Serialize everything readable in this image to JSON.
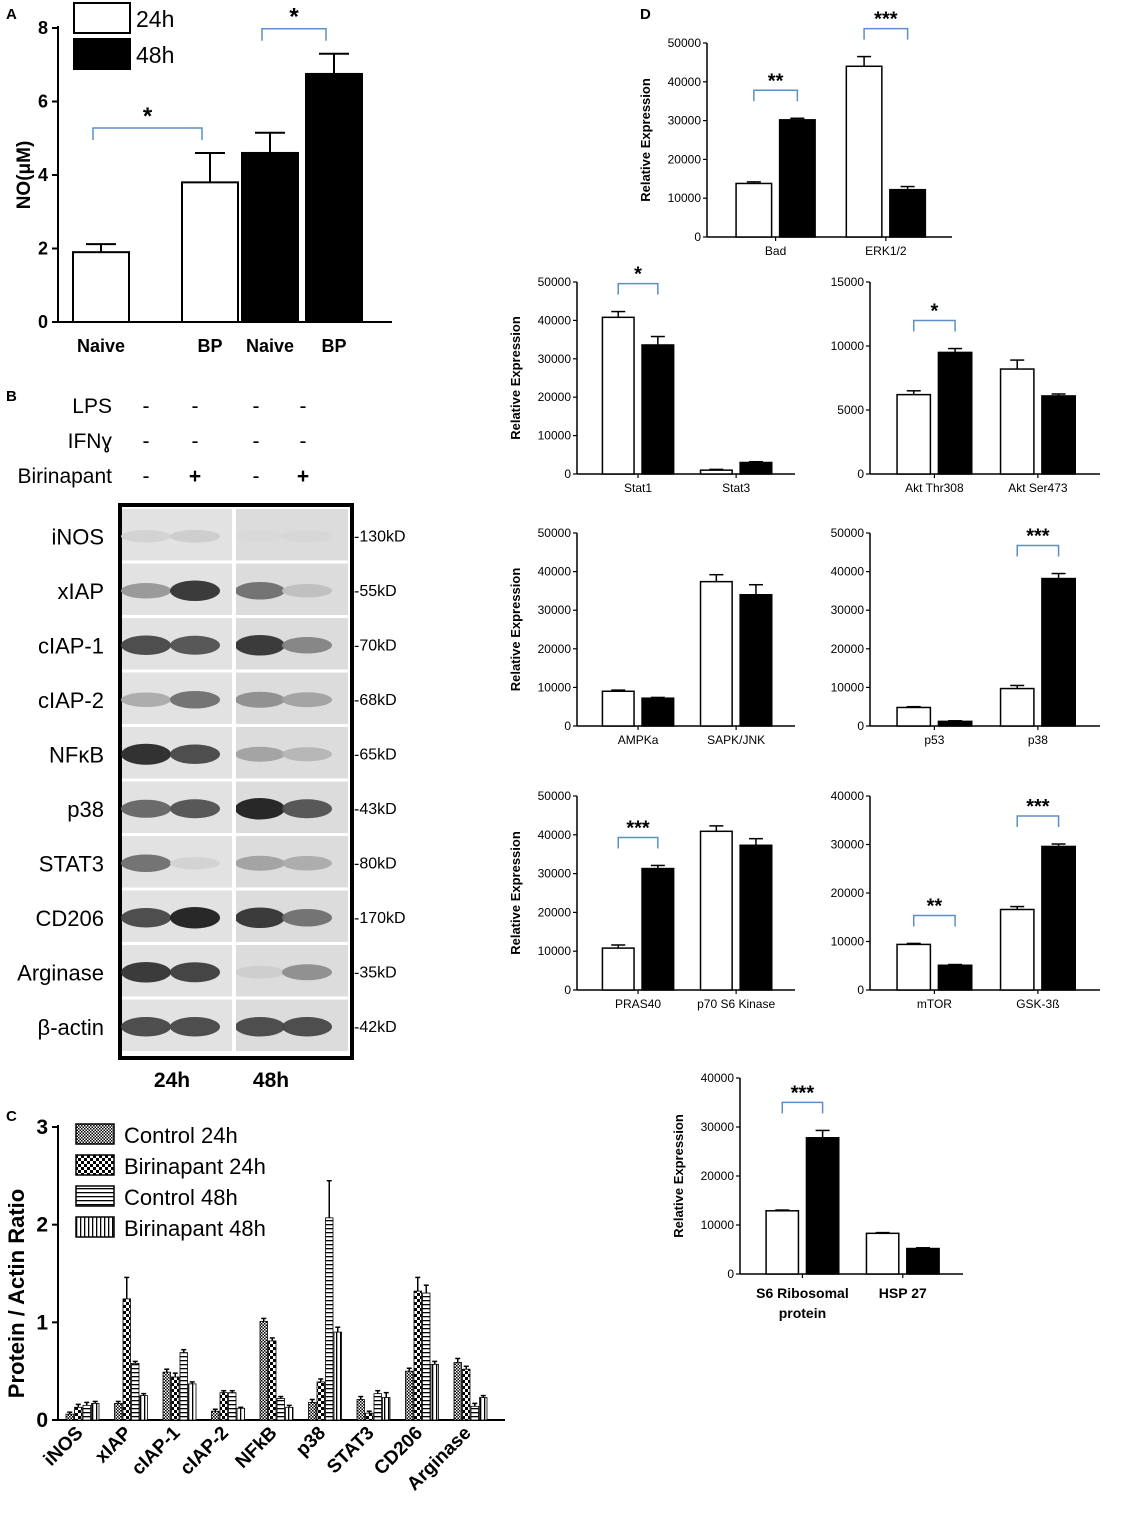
{
  "panels": {
    "A": {
      "label": "A"
    },
    "B": {
      "label": "B",
      "treatments": [
        {
          "name": "LPS",
          "signs": [
            "-",
            "-",
            "-",
            "-"
          ]
        },
        {
          "name": "IFNɣ",
          "signs": [
            "-",
            "-",
            "-",
            "-"
          ]
        },
        {
          "name": "Birinapant",
          "signs": [
            "-",
            "+",
            "-",
            "+"
          ]
        }
      ],
      "proteins": [
        {
          "name": "iNOS",
          "kd": "-130kD"
        },
        {
          "name": "xIAP",
          "kd": "-55kD"
        },
        {
          "name": "cIAP-1",
          "kd": "-70kD"
        },
        {
          "name": "cIAP-2",
          "kd": "-68kD"
        },
        {
          "name": "NFκB",
          "kd": "-65kD"
        },
        {
          "name": "p38",
          "kd": "-43kD"
        },
        {
          "name": "STAT3",
          "kd": "-80kD"
        },
        {
          "name": "CD206",
          "kd": "-170kD"
        },
        {
          "name": "Arginase",
          "kd": "-35kD"
        },
        {
          "name": "β-actin",
          "kd": "-42kD"
        }
      ],
      "timepoints": [
        "24h",
        "48h"
      ],
      "band_intensity": [
        [
          0.05,
          0.08,
          0.02,
          0.03
        ],
        [
          0.35,
          0.85,
          0.55,
          0.15
        ],
        [
          0.75,
          0.7,
          0.85,
          0.45
        ],
        [
          0.25,
          0.55,
          0.4,
          0.3
        ],
        [
          0.9,
          0.75,
          0.3,
          0.2
        ],
        [
          0.6,
          0.7,
          0.95,
          0.7
        ],
        [
          0.55,
          0.05,
          0.3,
          0.25
        ],
        [
          0.75,
          0.95,
          0.85,
          0.55
        ],
        [
          0.85,
          0.8,
          0.08,
          0.4
        ],
        [
          0.75,
          0.75,
          0.75,
          0.75
        ]
      ]
    },
    "C": {
      "label": "C"
    },
    "D": {
      "label": "D"
    }
  },
  "chart_data": [
    {
      "id": "A",
      "type": "bar",
      "categories": [
        "Naive",
        "BP",
        "Naive",
        "BP"
      ],
      "values": [
        1.9,
        3.8,
        4.6,
        6.75
      ],
      "errors": [
        0.22,
        0.8,
        0.55,
        0.55
      ],
      "fills": [
        "#ffffff",
        "#ffffff",
        "#000000",
        "#000000"
      ],
      "ylabel": "NO(μM)",
      "ylim": [
        0,
        8
      ],
      "yticks": [
        "0",
        "2",
        "4",
        "6",
        "8"
      ],
      "legend": [
        {
          "name": "24h",
          "color": "#ffffff"
        },
        {
          "name": "48h",
          "color": "#000000"
        }
      ],
      "annotations": [
        {
          "from": 0,
          "to": 1,
          "text": "*"
        },
        {
          "from": 2,
          "to": 3,
          "text": "*"
        }
      ]
    },
    {
      "id": "C",
      "type": "bar",
      "categories": [
        "iNOS",
        "xIAP",
        "cIAP-1",
        "cIAP-2",
        "NFkB",
        "p38",
        "STAT3",
        "CD206",
        "Arginase"
      ],
      "ylabel": "Protein / Actin Ratio",
      "ylim": [
        0,
        3
      ],
      "yticks": [
        "0",
        "1",
        "2",
        "3"
      ],
      "series": [
        {
          "name": "Control 24h",
          "pattern": "fine",
          "values": [
            0.06,
            0.17,
            0.49,
            0.09,
            1.01,
            0.18,
            0.21,
            0.5,
            0.59
          ],
          "errors": [
            0.02,
            0.02,
            0.03,
            0.02,
            0.03,
            0.03,
            0.03,
            0.03,
            0.04
          ]
        },
        {
          "name": "Birinapant 24h",
          "pattern": "checker",
          "values": [
            0.13,
            1.24,
            0.44,
            0.28,
            0.81,
            0.39,
            0.07,
            1.32,
            0.52
          ],
          "errors": [
            0.03,
            0.22,
            0.04,
            0.02,
            0.03,
            0.03,
            0.02,
            0.14,
            0.03
          ]
        },
        {
          "name": "Control 48h",
          "pattern": "hlines",
          "values": [
            0.15,
            0.58,
            0.69,
            0.28,
            0.22,
            2.07,
            0.27,
            1.3,
            0.14
          ],
          "errors": [
            0.03,
            0.02,
            0.03,
            0.02,
            0.02,
            0.38,
            0.03,
            0.08,
            0.03
          ]
        },
        {
          "name": "Birinapant 48h",
          "pattern": "vlines",
          "values": [
            0.17,
            0.25,
            0.37,
            0.12,
            0.13,
            0.9,
            0.23,
            0.57,
            0.23
          ],
          "errors": [
            0.02,
            0.02,
            0.02,
            0.01,
            0.02,
            0.05,
            0.05,
            0.03,
            0.02
          ]
        }
      ]
    },
    {
      "id": "D1",
      "type": "bar",
      "ylabel": "Relative Expression",
      "ylim": [
        0,
        50000
      ],
      "yticks": [
        "0",
        "10000",
        "20000",
        "30000",
        "40000",
        "50000"
      ],
      "categories": [
        "Bad",
        "ERK1/2"
      ],
      "values": [
        [
          13800,
          30200
        ],
        [
          44000,
          12200
        ]
      ],
      "errors": [
        [
          400,
          400
        ],
        [
          2500,
          800
        ]
      ],
      "annotations": [
        {
          "group": 0,
          "text": "**"
        },
        {
          "group": 1,
          "text": "***"
        }
      ]
    },
    {
      "id": "D2",
      "type": "bar",
      "ylabel": "Relative Expression",
      "ylim": [
        0,
        50000
      ],
      "yticks": [
        "0",
        "10000",
        "20000",
        "30000",
        "40000",
        "50000"
      ],
      "categories": [
        "Stat1",
        "Stat3"
      ],
      "values": [
        [
          40800,
          33600
        ],
        [
          1000,
          3000
        ]
      ],
      "errors": [
        [
          1500,
          2200
        ],
        [
          200,
          200
        ]
      ],
      "annotations": [
        {
          "group": 0,
          "text": "*"
        }
      ]
    },
    {
      "id": "D3",
      "type": "bar",
      "ylabel": "",
      "ylim": [
        0,
        15000
      ],
      "yticks": [
        "0",
        "5000",
        "10000",
        "15000"
      ],
      "categories": [
        "Akt Thr308",
        "Akt Ser473"
      ],
      "values": [
        [
          6200,
          9500
        ],
        [
          8200,
          6100
        ]
      ],
      "errors": [
        [
          300,
          300
        ],
        [
          700,
          150
        ]
      ],
      "annotations": [
        {
          "group": 0,
          "text": "*"
        }
      ]
    },
    {
      "id": "D4",
      "type": "bar",
      "ylabel": "Relative Expression",
      "ylim": [
        0,
        50000
      ],
      "yticks": [
        "0",
        "10000",
        "20000",
        "30000",
        "40000",
        "50000"
      ],
      "categories": [
        "AMPKa",
        "SAPK/JNK"
      ],
      "values": [
        [
          9000,
          7200
        ],
        [
          37400,
          34000
        ]
      ],
      "errors": [
        [
          300,
          200
        ],
        [
          1800,
          2600
        ]
      ],
      "annotations": []
    },
    {
      "id": "D5",
      "type": "bar",
      "ylabel": "",
      "ylim": [
        0,
        50000
      ],
      "yticks": [
        "0",
        "10000",
        "20000",
        "30000",
        "40000",
        "50000"
      ],
      "categories": [
        "p53",
        "p38"
      ],
      "values": [
        [
          4800,
          1200
        ],
        [
          9700,
          38200
        ]
      ],
      "errors": [
        [
          200,
          150
        ],
        [
          800,
          1300
        ]
      ],
      "annotations": [
        {
          "group": 1,
          "text": "***"
        }
      ]
    },
    {
      "id": "D6",
      "type": "bar",
      "ylabel": "Relative Expression",
      "ylim": [
        0,
        50000
      ],
      "yticks": [
        "0",
        "10000",
        "20000",
        "30000",
        "40000",
        "50000"
      ],
      "categories": [
        "PRAS40",
        "p70 S6 Kinase"
      ],
      "values": [
        [
          10800,
          31300
        ],
        [
          40900,
          37300
        ]
      ],
      "errors": [
        [
          800,
          800
        ],
        [
          1400,
          1700
        ]
      ],
      "annotations": [
        {
          "group": 0,
          "text": "***"
        }
      ]
    },
    {
      "id": "D7",
      "type": "bar",
      "ylabel": "",
      "ylim": [
        0,
        40000
      ],
      "yticks": [
        "0",
        "10000",
        "20000",
        "30000",
        "40000"
      ],
      "categories": [
        "mTOR",
        "GSK-3ß"
      ],
      "values": [
        [
          9400,
          5100
        ],
        [
          16600,
          29600
        ]
      ],
      "errors": [
        [
          200,
          150
        ],
        [
          600,
          500
        ]
      ],
      "annotations": [
        {
          "group": 0,
          "text": "**"
        },
        {
          "group": 1,
          "text": "***"
        }
      ]
    },
    {
      "id": "D8",
      "type": "bar",
      "ylabel": "Relative Expression",
      "ylim": [
        0,
        40000
      ],
      "yticks": [
        "0",
        "10000",
        "20000",
        "30000",
        "40000"
      ],
      "categories": [
        "S6 Ribosomal protein",
        "HSP 27"
      ],
      "values": [
        [
          12900,
          27800
        ],
        [
          8300,
          5200
        ]
      ],
      "errors": [
        [
          150,
          1500
        ],
        [
          150,
          150
        ]
      ],
      "annotations": [
        {
          "group": 0,
          "text": "***"
        }
      ]
    }
  ]
}
